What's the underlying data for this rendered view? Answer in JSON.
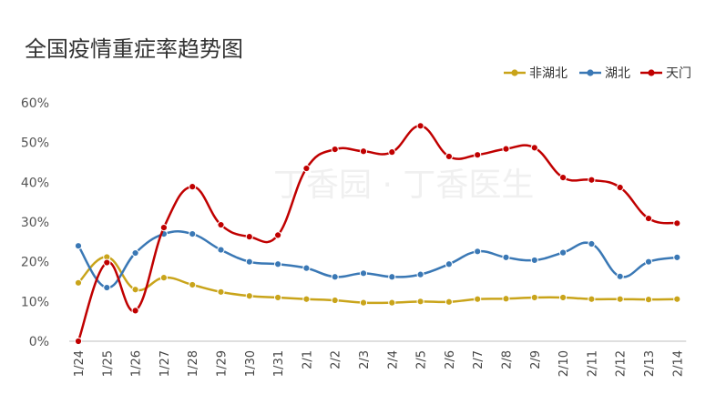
{
  "chart_data": {
    "type": "line",
    "title": "全国疫情重症率趋势图",
    "watermark": "丁香园 · 丁香医生",
    "categories": [
      "1/24",
      "1/25",
      "1/26",
      "1/27",
      "1/28",
      "1/29",
      "1/30",
      "1/31",
      "2/1",
      "2/2",
      "2/3",
      "2/4",
      "2/5",
      "2/6",
      "2/7",
      "2/8",
      "2/9",
      "2/10",
      "2/11",
      "2/12",
      "2/13",
      "2/14"
    ],
    "yticks": [
      "0%",
      "10%",
      "20%",
      "30%",
      "40%",
      "50%",
      "60%"
    ],
    "ylim": [
      0,
      60
    ],
    "grid": "none",
    "legend_position": "top-right",
    "series": [
      {
        "name": "非湖北",
        "color": "#c9a41a",
        "values": [
          14.7,
          21.2,
          13.0,
          16.0,
          14.2,
          12.4,
          11.4,
          11.0,
          10.6,
          10.3,
          9.7,
          9.7,
          10.0,
          9.9,
          10.6,
          10.7,
          11.0,
          11.0,
          10.6,
          10.6,
          10.5,
          10.6
        ]
      },
      {
        "name": "湖北",
        "color": "#3a78b5",
        "values": [
          24.0,
          13.5,
          22.2,
          27.0,
          27.0,
          23.0,
          20.0,
          19.4,
          18.4,
          16.2,
          17.1,
          16.2,
          16.8,
          19.4,
          22.6,
          21.1,
          20.4,
          22.3,
          24.5,
          16.3,
          20.0,
          21.1
        ]
      },
      {
        "name": "天门",
        "color": "#c00000",
        "values": [
          0.0,
          19.8,
          7.7,
          28.6,
          38.9,
          29.3,
          26.3,
          26.7,
          43.5,
          48.3,
          47.8,
          47.6,
          54.2,
          46.5,
          46.9,
          48.4,
          48.7,
          41.2,
          40.6,
          38.7,
          30.9,
          29.7
        ]
      }
    ]
  }
}
